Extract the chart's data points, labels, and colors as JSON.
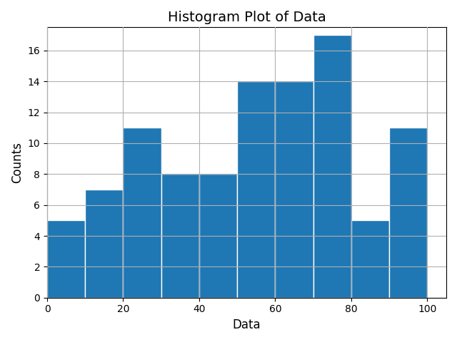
{
  "bin_edges": [
    0,
    10,
    20,
    30,
    40,
    50,
    60,
    70,
    80,
    90,
    100
  ],
  "counts": [
    5,
    7,
    11,
    8,
    8,
    14,
    14,
    17,
    5,
    11
  ],
  "bar_color": "#1f77b4",
  "edge_color": "white",
  "title": "Histogram Plot of Data",
  "xlabel": "Data",
  "ylabel": "Counts",
  "ylim": [
    0,
    17.5
  ],
  "title_fontsize": 14,
  "label_fontsize": 12,
  "grid": true,
  "grid_color": "#b0b0b0",
  "xticks": [
    0,
    20,
    40,
    60,
    80,
    100
  ],
  "yticks": [
    0,
    2,
    4,
    6,
    8,
    10,
    12,
    14,
    16
  ]
}
